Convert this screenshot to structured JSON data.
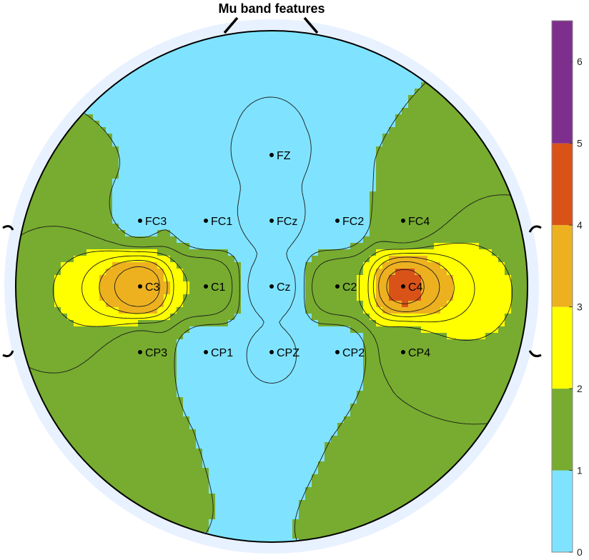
{
  "chart_data": {
    "type": "heatmap",
    "title": "Mu band features",
    "colorbar": {
      "range": [
        0,
        6.5
      ],
      "ticks": [
        "0",
        "1",
        "2",
        "3",
        "4",
        "5",
        "6"
      ],
      "bands": [
        {
          "from": 0,
          "to": 1,
          "color": "#7fe3ff"
        },
        {
          "from": 1,
          "to": 2,
          "color": "#77ac30"
        },
        {
          "from": 2,
          "to": 3,
          "color": "#ffff00"
        },
        {
          "from": 3,
          "to": 4,
          "color": "#edb120"
        },
        {
          "from": 4,
          "to": 5,
          "color": "#d95319"
        },
        {
          "from": 5,
          "to": 6.5,
          "color": "#7e2f8e"
        }
      ]
    },
    "electrodes": [
      {
        "name": "FZ",
        "x": 0,
        "y": 0.5,
        "value": 0.4
      },
      {
        "name": "FC3",
        "x": -0.5,
        "y": 0.25,
        "value": 0.9
      },
      {
        "name": "FC1",
        "x": -0.25,
        "y": 0.25,
        "value": 0.5
      },
      {
        "name": "FCz",
        "x": 0,
        "y": 0.25,
        "value": 0.3
      },
      {
        "name": "FC2",
        "x": 0.25,
        "y": 0.25,
        "value": 0.5
      },
      {
        "name": "FC4",
        "x": 0.5,
        "y": 0.25,
        "value": 1.2
      },
      {
        "name": "C3",
        "x": -0.5,
        "y": 0,
        "value": 3.8
      },
      {
        "name": "C1",
        "x": -0.25,
        "y": 0,
        "value": 2.0
      },
      {
        "name": "Cz",
        "x": 0,
        "y": 0,
        "value": 0.2
      },
      {
        "name": "C2",
        "x": 0.25,
        "y": 0,
        "value": 1.9
      },
      {
        "name": "C4",
        "x": 0.5,
        "y": 0,
        "value": 4.2
      },
      {
        "name": "CP3",
        "x": -0.5,
        "y": -0.25,
        "value": 1.3
      },
      {
        "name": "CP1",
        "x": -0.25,
        "y": -0.25,
        "value": 0.6
      },
      {
        "name": "CPZ",
        "x": 0,
        "y": -0.25,
        "value": 0.4
      },
      {
        "name": "CP2",
        "x": 0.25,
        "y": -0.25,
        "value": 0.6
      },
      {
        "name": "CP4",
        "x": 0.5,
        "y": -0.25,
        "value": 1.6
      }
    ],
    "colors": {
      "head_outline": "#000000",
      "head_halo": "#e8f1ff",
      "contour": "#1a1a1a"
    }
  }
}
